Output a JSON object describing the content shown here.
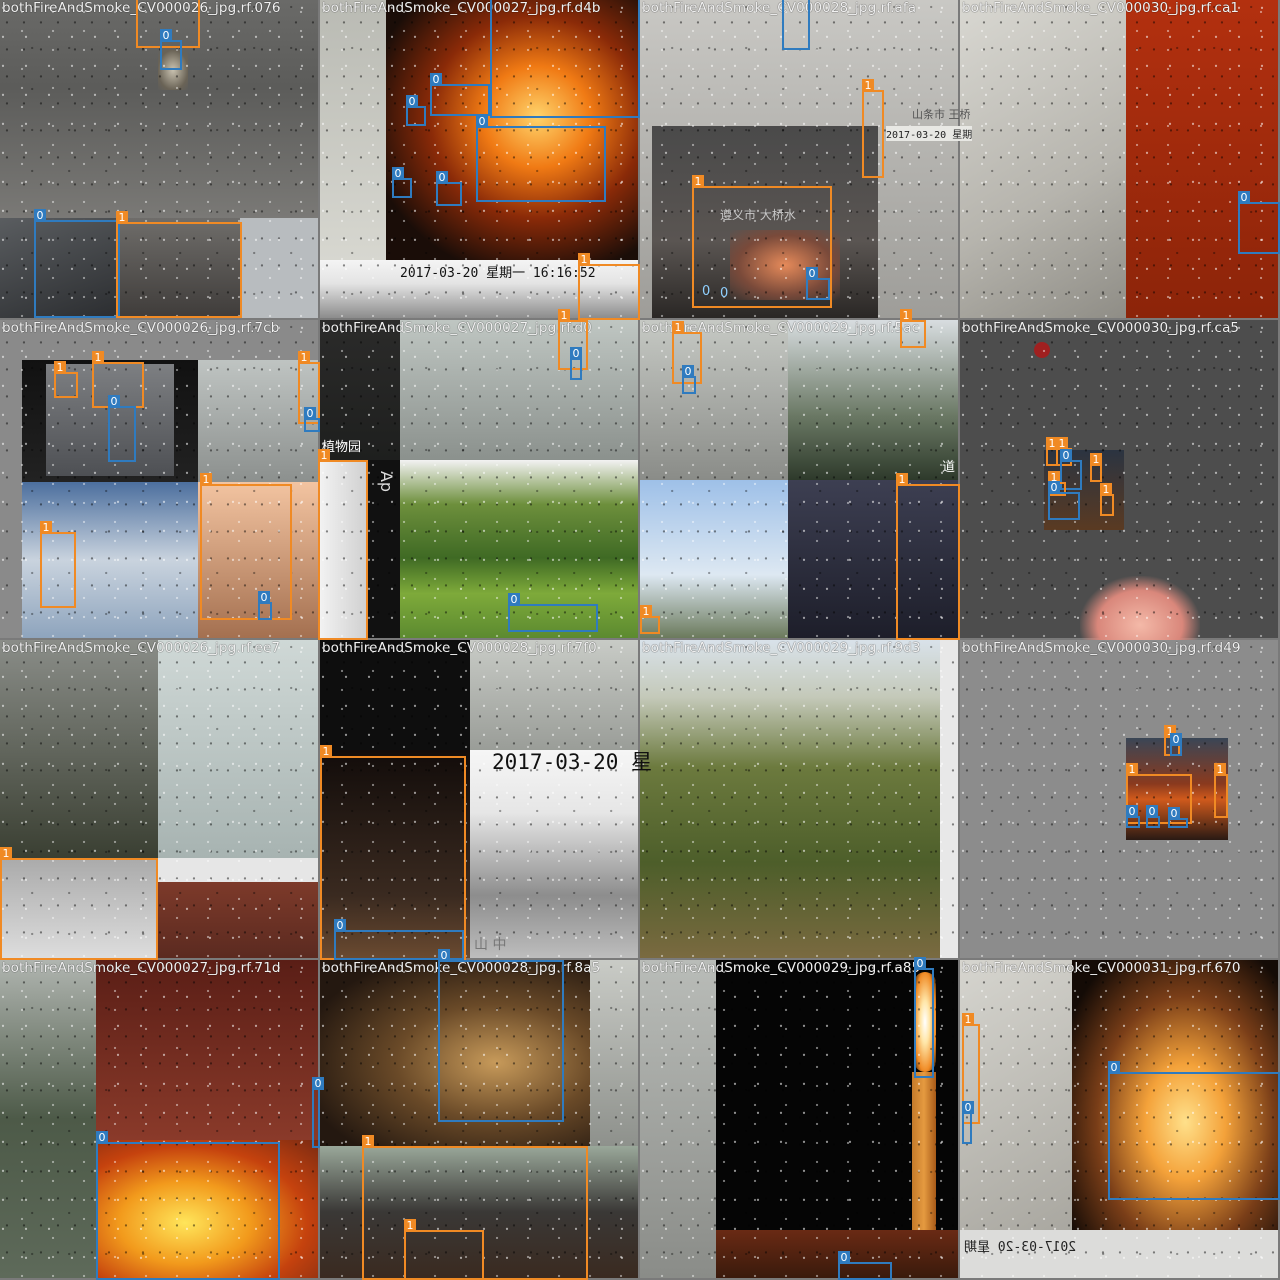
{
  "colors": {
    "class0": "#2f7bbf",
    "class1": "#f08a24",
    "title_text": "#f2f2f2"
  },
  "tiles": [
    {
      "title": "bothFireAndSmoke_CV000026_jpg.rf.076",
      "texts": [],
      "boxes": [
        {
          "cls": "0",
          "label": "0"
        },
        {
          "cls": "0",
          "label": "0"
        },
        {
          "cls": "1",
          "label": "1"
        }
      ]
    },
    {
      "title": "bothFireAndSmoke_CV000027_jpg.rf.d4b",
      "texts": [
        "2017-03-20 星期一 16:16:52"
      ],
      "boxes": [
        {
          "cls": "0",
          "label": "0"
        },
        {
          "cls": "0",
          "label": "0"
        },
        {
          "cls": "0",
          "label": "0"
        },
        {
          "cls": "0",
          "label": "0"
        },
        {
          "cls": "0",
          "label": "0"
        },
        {
          "cls": "1",
          "label": "1"
        }
      ]
    },
    {
      "title": "bothFireAndSmoke_CV000028_jpg.rf.afa",
      "texts": [
        "2017-03-20 星期",
        "山条市 王桥",
        "遵义市 大桥水"
      ],
      "boxes": [
        {
          "cls": "0",
          "label": "0"
        },
        {
          "cls": "1",
          "label": "1"
        },
        {
          "cls": "1",
          "label": "1"
        },
        {
          "cls": "0",
          "label": "0"
        },
        {
          "cls": "0",
          "label": "0"
        },
        {
          "cls": "0",
          "label": "0"
        }
      ]
    },
    {
      "title": "bothFireAndSmoke_CV000030_jpg.rf.ca1",
      "texts": [],
      "boxes": [
        {
          "cls": "0",
          "label": "0"
        }
      ]
    },
    {
      "title": "bothFireAndSmoke_CV000026_jpg.rf.7cb",
      "texts": [],
      "boxes": [
        {
          "cls": "1",
          "label": "1"
        },
        {
          "cls": "1",
          "label": "1"
        },
        {
          "cls": "0",
          "label": "0"
        },
        {
          "cls": "1",
          "label": "1"
        },
        {
          "cls": "0",
          "label": "0"
        },
        {
          "cls": "1",
          "label": "1"
        },
        {
          "cls": "1",
          "label": "1"
        },
        {
          "cls": "0",
          "label": "0"
        }
      ]
    },
    {
      "title": "bothFireAndSmoke_CV000027_jpg.rf.d0",
      "texts": [
        "植物园",
        "Ap"
      ],
      "boxes": [
        {
          "cls": "1",
          "label": "1"
        },
        {
          "cls": "0",
          "label": "0"
        },
        {
          "cls": "1",
          "label": "1"
        },
        {
          "cls": "0",
          "label": "0"
        }
      ]
    },
    {
      "title": "bothFireAndSmoke_CV000029_jpg.rf.5ac",
      "texts": [
        "道"
      ],
      "boxes": [
        {
          "cls": "1",
          "label": "1"
        },
        {
          "cls": "0",
          "label": "0"
        },
        {
          "cls": "1",
          "label": "1"
        },
        {
          "cls": "1",
          "label": "1"
        },
        {
          "cls": "1",
          "label": "1"
        }
      ]
    },
    {
      "title": "bothFireAndSmoke_CV000030_jpg.rf.ca5",
      "texts": [],
      "boxes": [
        {
          "cls": "1",
          "label": "1"
        },
        {
          "cls": "1",
          "label": "1"
        },
        {
          "cls": "0",
          "label": "0"
        },
        {
          "cls": "1",
          "label": "1"
        },
        {
          "cls": "1",
          "label": "1"
        },
        {
          "cls": "0",
          "label": "0"
        },
        {
          "cls": "1",
          "label": "1"
        }
      ]
    },
    {
      "title": "bothFireAndSmoke_CV000026_jpg.rf.ee7",
      "texts": [],
      "boxes": [
        {
          "cls": "1",
          "label": "1"
        }
      ]
    },
    {
      "title": "bothFireAndSmoke_CV000028_jpg.rf.7f0",
      "texts": [
        "2017-03-20 星",
        "山 中"
      ],
      "boxes": [
        {
          "cls": "1",
          "label": "1"
        },
        {
          "cls": "0",
          "label": "0"
        }
      ]
    },
    {
      "title": "bothFireAndSmoke_CV000029_jpg.rf.9d3",
      "texts": [],
      "boxes": []
    },
    {
      "title": "bothFireAndSmoke_CV000030_jpg.rf.d49",
      "texts": [],
      "boxes": [
        {
          "cls": "1",
          "label": "1"
        },
        {
          "cls": "0",
          "label": "0"
        },
        {
          "cls": "1",
          "label": "1"
        },
        {
          "cls": "1",
          "label": "1"
        },
        {
          "cls": "0",
          "label": "0"
        },
        {
          "cls": "0",
          "label": "0"
        },
        {
          "cls": "0",
          "label": "0"
        }
      ]
    },
    {
      "title": "bothFireAndSmoke_CV000027_jpg.rf.71d",
      "texts": [],
      "boxes": [
        {
          "cls": "0",
          "label": "0"
        },
        {
          "cls": "0",
          "label": "0"
        }
      ]
    },
    {
      "title": "bothFireAndSmoke_CV000028_jpg.rf.8a5",
      "texts": [],
      "boxes": [
        {
          "cls": "0",
          "label": "0"
        },
        {
          "cls": "1",
          "label": "1"
        },
        {
          "cls": "1",
          "label": "1"
        }
      ]
    },
    {
      "title": "bothFireAndSmoke_CV000029_jpg.rf.a85",
      "texts": [],
      "boxes": [
        {
          "cls": "0",
          "label": "0"
        },
        {
          "cls": "0",
          "label": "0"
        }
      ]
    },
    {
      "title": "bothFireAndSmoke_CV000031_jpg.rf.670",
      "texts": [
        "2017-03-20 星期"
      ],
      "boxes": [
        {
          "cls": "1",
          "label": "1"
        },
        {
          "cls": "0",
          "label": "0"
        },
        {
          "cls": "0",
          "label": "0"
        }
      ]
    }
  ]
}
